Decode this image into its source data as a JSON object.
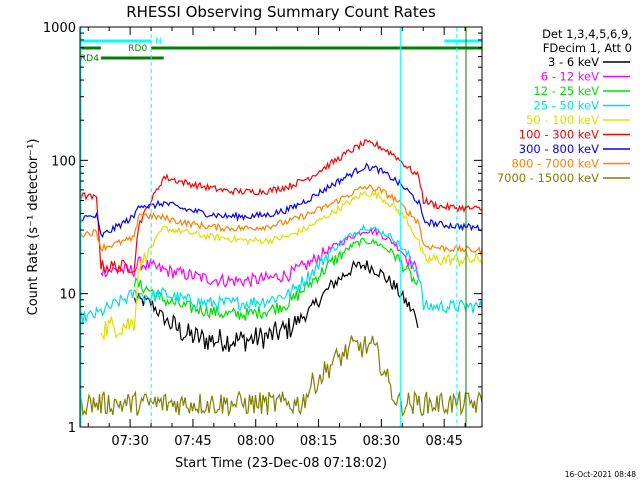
{
  "chart_data": {
    "type": "line",
    "title": "RHESSI Observing Summary Count Rates",
    "xlabel": "Start Time (23-Dec-08 07:18:02)",
    "ylabel": "Count Rate (s⁻¹ detector⁻¹)",
    "yscale": "log",
    "ylim": [
      1,
      1000
    ],
    "xlim_minutes": [
      0,
      96
    ],
    "x_ticks": [
      "07:30",
      "07:45",
      "08:00",
      "08:15",
      "08:30",
      "08:45"
    ],
    "y_ticks": [
      "1",
      "10",
      "100",
      "1000"
    ],
    "legend_header": [
      "Det 1,3,4,5,6,9,",
      "FDecim 1, Att 0"
    ],
    "legend_position": "top-right",
    "timestamp": "16-Oct-2021 08:48",
    "flags": [
      {
        "name": "N",
        "color": "#00ffff",
        "segments": [
          [
            0,
            17
          ],
          [
            87,
            96
          ]
        ]
      },
      {
        "name": "RD0",
        "color": "#008000",
        "segments": [
          [
            0,
            5
          ],
          [
            17,
            96
          ]
        ]
      },
      {
        "name": "RD4",
        "color": "#008000",
        "segments": [
          [
            5,
            20
          ]
        ]
      }
    ],
    "dashed_lines_minutes": [
      17,
      90
    ],
    "solid_lines_minutes": [
      76.5
    ],
    "series": [
      {
        "name": "3 - 6 keV",
        "color": "#000000",
        "points": [
          [
            13,
            9
          ],
          [
            17,
            8.5
          ],
          [
            20,
            6.5
          ],
          [
            25,
            5
          ],
          [
            30,
            4.5
          ],
          [
            35,
            4.5
          ],
          [
            40,
            4.5
          ],
          [
            45,
            4.8
          ],
          [
            50,
            5.5
          ],
          [
            55,
            7.5
          ],
          [
            60,
            11.5
          ],
          [
            65,
            15.5
          ],
          [
            68,
            16.5
          ],
          [
            71,
            15
          ],
          [
            75,
            11.5
          ],
          [
            78,
            8.5
          ],
          [
            80,
            7
          ],
          [
            81,
            4.5
          ]
        ]
      },
      {
        "name": "6 - 12 keV",
        "color": "#ff00ff",
        "points": [
          [
            5,
            15
          ],
          [
            13,
            15
          ],
          [
            14,
            17
          ],
          [
            17,
            16
          ],
          [
            20,
            15
          ],
          [
            25,
            14
          ],
          [
            30,
            13
          ],
          [
            35,
            12.5
          ],
          [
            40,
            12.5
          ],
          [
            45,
            13
          ],
          [
            50,
            14
          ],
          [
            55,
            17
          ],
          [
            60,
            22
          ],
          [
            65,
            27
          ],
          [
            68,
            30
          ],
          [
            71,
            29
          ],
          [
            75,
            24
          ],
          [
            78,
            19
          ],
          [
            81,
            14
          ]
        ]
      },
      {
        "name": "12 - 25 keV",
        "color": "#00e000",
        "points": [
          [
            13,
            12
          ],
          [
            17,
            10.5
          ],
          [
            20,
            9
          ],
          [
            25,
            8
          ],
          [
            30,
            7.5
          ],
          [
            35,
            7
          ],
          [
            40,
            7
          ],
          [
            45,
            7.5
          ],
          [
            50,
            8.5
          ],
          [
            55,
            12
          ],
          [
            60,
            17
          ],
          [
            65,
            23
          ],
          [
            68,
            25
          ],
          [
            71,
            24
          ],
          [
            75,
            20
          ],
          [
            78,
            15
          ],
          [
            81,
            11
          ]
        ]
      },
      {
        "name": "25 - 50 keV",
        "color": "#00e0e0",
        "points": [
          [
            0,
            6.5
          ],
          [
            4,
            7
          ],
          [
            13,
            10
          ],
          [
            17,
            9.5
          ],
          [
            20,
            10
          ],
          [
            25,
            9
          ],
          [
            30,
            8.5
          ],
          [
            35,
            8.5
          ],
          [
            40,
            8.5
          ],
          [
            45,
            9
          ],
          [
            50,
            10
          ],
          [
            55,
            14
          ],
          [
            60,
            21
          ],
          [
            65,
            28
          ],
          [
            68,
            32
          ],
          [
            71,
            30
          ],
          [
            75,
            26
          ],
          [
            78,
            20
          ],
          [
            81,
            14
          ],
          [
            82,
            8
          ],
          [
            96,
            8
          ]
        ]
      },
      {
        "name": "50 - 100 keV",
        "color": "#e0e000",
        "points": [
          [
            5,
            5.5
          ],
          [
            13,
            6
          ],
          [
            14,
            16
          ],
          [
            20,
            31
          ],
          [
            25,
            29
          ],
          [
            30,
            27
          ],
          [
            35,
            26
          ],
          [
            40,
            25
          ],
          [
            45,
            25
          ],
          [
            50,
            27
          ],
          [
            55,
            32
          ],
          [
            60,
            40
          ],
          [
            65,
            50
          ],
          [
            68,
            57
          ],
          [
            71,
            55
          ],
          [
            75,
            45
          ],
          [
            78,
            36
          ],
          [
            81,
            24
          ],
          [
            82,
            18
          ],
          [
            96,
            18
          ]
        ]
      },
      {
        "name": "100 - 300 keV",
        "color": "#ff0000",
        "points": [
          [
            0,
            55
          ],
          [
            4,
            52
          ],
          [
            5,
            16
          ],
          [
            13,
            16
          ],
          [
            14,
            33
          ],
          [
            20,
            75
          ],
          [
            25,
            68
          ],
          [
            30,
            63
          ],
          [
            35,
            59
          ],
          [
            40,
            58
          ],
          [
            45,
            59
          ],
          [
            50,
            64
          ],
          [
            55,
            75
          ],
          [
            60,
            95
          ],
          [
            65,
            120
          ],
          [
            68,
            135
          ],
          [
            71,
            130
          ],
          [
            75,
            110
          ],
          [
            78,
            90
          ],
          [
            81,
            75
          ],
          [
            82,
            50
          ],
          [
            86,
            45
          ],
          [
            96,
            43
          ]
        ]
      },
      {
        "name": "300 - 800 keV",
        "color": "#0000ff",
        "points": [
          [
            0,
            37
          ],
          [
            4,
            38
          ],
          [
            5,
            27
          ],
          [
            13,
            38
          ],
          [
            14,
            47
          ],
          [
            17,
            45
          ],
          [
            20,
            48
          ],
          [
            25,
            43
          ],
          [
            30,
            40
          ],
          [
            35,
            38
          ],
          [
            40,
            38
          ],
          [
            45,
            39
          ],
          [
            50,
            43
          ],
          [
            55,
            52
          ],
          [
            60,
            65
          ],
          [
            65,
            80
          ],
          [
            68,
            90
          ],
          [
            71,
            86
          ],
          [
            75,
            72
          ],
          [
            78,
            60
          ],
          [
            81,
            48
          ],
          [
            82,
            35
          ],
          [
            86,
            33
          ],
          [
            96,
            31
          ]
        ]
      },
      {
        "name": "800 - 7000 keV",
        "color": "#ff8000",
        "points": [
          [
            0,
            28
          ],
          [
            4,
            29
          ],
          [
            5,
            22
          ],
          [
            13,
            26
          ],
          [
            14,
            40
          ],
          [
            17,
            38
          ],
          [
            20,
            37
          ],
          [
            25,
            34
          ],
          [
            30,
            32
          ],
          [
            35,
            31
          ],
          [
            40,
            31
          ],
          [
            45,
            32
          ],
          [
            50,
            35
          ],
          [
            55,
            40
          ],
          [
            60,
            47
          ],
          [
            65,
            57
          ],
          [
            68,
            63
          ],
          [
            71,
            61
          ],
          [
            75,
            52
          ],
          [
            78,
            42
          ],
          [
            81,
            34
          ],
          [
            82,
            23
          ],
          [
            86,
            22
          ],
          [
            96,
            21
          ]
        ]
      },
      {
        "name": "7000 - 15000 keV",
        "color": "#808000",
        "points": [
          [
            0,
            1.5
          ],
          [
            20,
            1.5
          ],
          [
            40,
            1.5
          ],
          [
            53,
            1.5
          ],
          [
            55,
            2
          ],
          [
            58,
            2.5
          ],
          [
            60,
            3
          ],
          [
            63,
            3.5
          ],
          [
            65,
            4
          ],
          [
            70,
            4
          ],
          [
            72,
            3
          ],
          [
            74,
            2
          ],
          [
            76,
            1.5
          ],
          [
            96,
            1.5
          ]
        ]
      }
    ]
  }
}
